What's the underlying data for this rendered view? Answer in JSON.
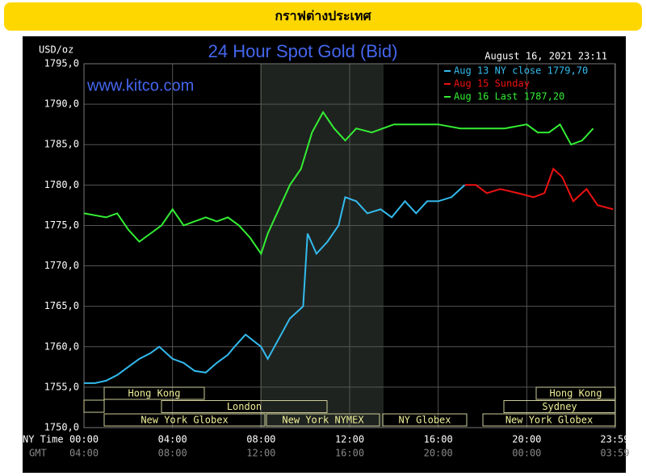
{
  "header": {
    "title": "กราฟต่างประเทศ"
  },
  "chart_data": {
    "type": "line",
    "title": "24 Hour Spot Gold (Bid)",
    "watermark": "www.kitco.com",
    "timestamp": "August 16, 2021 23:11",
    "y_label": "USD/oz",
    "x_label": "NY Time",
    "x2_label": "GMT",
    "ylim": [
      1750,
      1795
    ],
    "yticks": [
      {
        "value": 1750,
        "label": "1750,0"
      },
      {
        "value": 1755,
        "label": "1755,0"
      },
      {
        "value": 1760,
        "label": "1760,0"
      },
      {
        "value": 1765,
        "label": "1765,0"
      },
      {
        "value": 1770,
        "label": "1770,0"
      },
      {
        "value": 1775,
        "label": "1775,0"
      },
      {
        "value": 1780,
        "label": "1780,0"
      },
      {
        "value": 1785,
        "label": "1785,0"
      },
      {
        "value": 1790,
        "label": "1790,0"
      },
      {
        "value": 1795,
        "label": "1795,0"
      }
    ],
    "xlim": [
      0,
      24
    ],
    "xticks": [
      {
        "value": 0,
        "label": "00:00"
      },
      {
        "value": 4,
        "label": "04:00"
      },
      {
        "value": 8,
        "label": "08:00"
      },
      {
        "value": 12,
        "label": "12:00"
      },
      {
        "value": 16,
        "label": "16:00"
      },
      {
        "value": 20,
        "label": "20:00"
      },
      {
        "value": 23.98,
        "label": "23:59"
      }
    ],
    "x2tick_labels": [
      "04:00",
      "08:00",
      "12:00",
      "16:00",
      "20:00",
      "00:00",
      "03:59"
    ],
    "grid": true,
    "sessions": [
      "Hong Kong",
      "London",
      "New York Globex",
      "New York NYMEX",
      "NY Globex",
      "Hong Kong",
      "Sydney",
      "New York Globex"
    ],
    "series": [
      {
        "name": "Aug 13 NY close 1779,70",
        "color": "#33bbee",
        "x": [
          0,
          0.5,
          1,
          1.5,
          2,
          2.5,
          3,
          3.4,
          4,
          4.5,
          5,
          5.5,
          6,
          6.5,
          6.8,
          7.3,
          8,
          8.3,
          8.8,
          9.3,
          9.9,
          10.1,
          10.5,
          11,
          11.5,
          11.8,
          12.3,
          12.8,
          13.4,
          13.9,
          14.5,
          15,
          15.5,
          16,
          16.6,
          17.2
        ],
        "values": [
          1755.5,
          1755.5,
          1755.8,
          1756.5,
          1757.5,
          1758.5,
          1759.2,
          1760,
          1758.5,
          1758,
          1757,
          1756.8,
          1758,
          1759,
          1760,
          1761.5,
          1760,
          1758.5,
          1761,
          1763.5,
          1765,
          1774,
          1771.5,
          1773,
          1775,
          1778.5,
          1778,
          1776.5,
          1777,
          1776,
          1778,
          1776.5,
          1778,
          1778,
          1778.5,
          1780
        ]
      },
      {
        "name": "Aug 15 Sunday",
        "color": "#ee1111",
        "x": [
          17.2,
          17.7,
          18.2,
          18.8,
          19.6,
          20.3,
          20.8,
          21.2,
          21.6,
          22.1,
          22.7,
          23.2,
          23.9
        ],
        "values": [
          1780,
          1780,
          1779,
          1779.5,
          1779,
          1778.5,
          1779,
          1782,
          1781,
          1778,
          1779.5,
          1777.5,
          1777
        ]
      },
      {
        "name": "Aug 16 Last 1787,20",
        "color": "#33ee33",
        "x": [
          0,
          1,
          1.5,
          2,
          2.5,
          3,
          3.5,
          4,
          4.5,
          5,
          5.5,
          6,
          6.5,
          7,
          7.5,
          8,
          8.3,
          8.8,
          9.3,
          9.8,
          10.3,
          10.8,
          11.3,
          11.8,
          12.3,
          13,
          13.5,
          14,
          15,
          16,
          17,
          18,
          19,
          20,
          20.5,
          21,
          21.5,
          22,
          22.5,
          23
        ],
        "values": [
          1776.5,
          1776,
          1776.5,
          1774.5,
          1773,
          1774,
          1775,
          1777,
          1775,
          1775.5,
          1776,
          1775.5,
          1776,
          1775,
          1773.5,
          1771.5,
          1774,
          1777,
          1780,
          1782,
          1786.5,
          1789,
          1787,
          1785.5,
          1787,
          1786.5,
          1787,
          1787.5,
          1787.5,
          1787.5,
          1787,
          1787,
          1787,
          1787.5,
          1786.5,
          1786.5,
          1787.5,
          1785,
          1785.5,
          1787
        ]
      }
    ]
  }
}
